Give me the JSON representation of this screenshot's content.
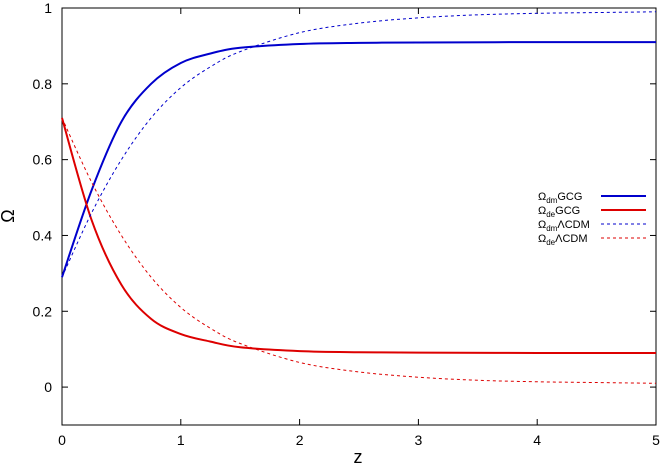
{
  "chart_data": {
    "type": "line",
    "title": "",
    "xlabel": "z",
    "ylabel": "Ω",
    "xlim": [
      0,
      5
    ],
    "ylim": [
      -0.1,
      1
    ],
    "xticks": [
      0,
      1,
      2,
      3,
      4,
      5
    ],
    "yticks": [
      0,
      0.2,
      0.4,
      0.6,
      0.8,
      1
    ],
    "grid": false,
    "legend_position": "right",
    "series": [
      {
        "name": "Ω_dm GCG",
        "legend_symbol": "Ω",
        "legend_sub": "dm",
        "legend_rest": "GCG",
        "color": "#0000cc",
        "style": "solid",
        "x": [
          0,
          0.25,
          0.5,
          0.75,
          1,
          1.25,
          1.5,
          2,
          2.5,
          3,
          4,
          5
        ],
        "y": [
          0.29,
          0.52,
          0.7,
          0.8,
          0.855,
          0.88,
          0.895,
          0.905,
          0.908,
          0.909,
          0.91,
          0.91
        ]
      },
      {
        "name": "Ω_de GCG",
        "legend_symbol": "Ω",
        "legend_sub": "de",
        "legend_rest": "GCG",
        "color": "#dd0000",
        "style": "solid",
        "x": [
          0,
          0.25,
          0.5,
          0.75,
          1,
          1.25,
          1.5,
          2,
          2.5,
          3,
          4,
          5
        ],
        "y": [
          0.71,
          0.44,
          0.27,
          0.18,
          0.14,
          0.12,
          0.105,
          0.095,
          0.092,
          0.091,
          0.09,
          0.09
        ]
      },
      {
        "name": "Ω_dm ΛCDM",
        "legend_symbol": "Ω",
        "legend_sub": "dm",
        "legend_rest": "ΛCDM",
        "color": "#0000cc",
        "style": "dashed",
        "x": [
          0,
          0.25,
          0.5,
          0.75,
          1,
          1.25,
          1.5,
          2,
          2.5,
          3,
          3.5,
          4,
          4.5,
          5
        ],
        "y": [
          0.29,
          0.46,
          0.6,
          0.71,
          0.79,
          0.845,
          0.885,
          0.935,
          0.96,
          0.974,
          0.982,
          0.986,
          0.988,
          0.99
        ]
      },
      {
        "name": "Ω_de ΛCDM",
        "legend_symbol": "Ω",
        "legend_sub": "de",
        "legend_rest": "ΛCDM",
        "color": "#dd0000",
        "style": "dashed",
        "x": [
          0,
          0.25,
          0.5,
          0.75,
          1,
          1.25,
          1.5,
          2,
          2.5,
          3,
          3.5,
          4,
          4.5,
          5
        ],
        "y": [
          0.71,
          0.54,
          0.4,
          0.29,
          0.21,
          0.155,
          0.115,
          0.065,
          0.04,
          0.026,
          0.018,
          0.014,
          0.012,
          0.01
        ]
      }
    ]
  }
}
